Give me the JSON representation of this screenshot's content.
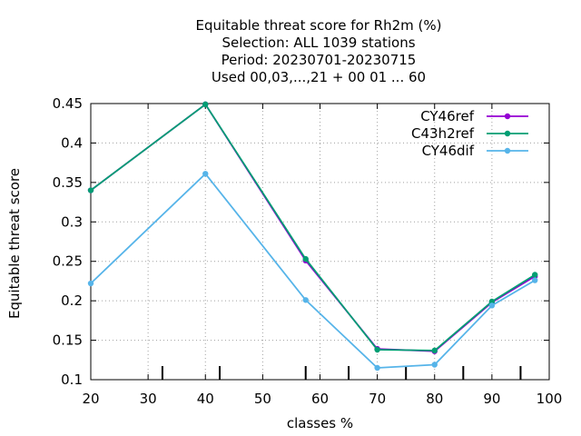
{
  "chart_data": {
    "type": "line",
    "title_lines": [
      "Equitable threat score  for Rh2m (%)",
      "Selection: ALL   1039 stations",
      "Period: 20230701-20230715",
      "Used  00,03,...,21  + 00 01 ... 60"
    ],
    "xlabel": "classes %",
    "ylabel": "Equitable threat score",
    "xlim": [
      20,
      100
    ],
    "ylim": [
      0.1,
      0.45
    ],
    "xticks": [
      20,
      30,
      40,
      50,
      60,
      70,
      80,
      90,
      100
    ],
    "yticks": [
      0.1,
      0.15,
      0.2,
      0.25,
      0.3,
      0.35,
      0.4,
      0.45
    ],
    "ytick_labels": [
      "0.1",
      "0.15",
      "0.2",
      "0.25",
      "0.3",
      "0.35",
      "0.4",
      "0.45"
    ],
    "minor_marks_x": [
      32.5,
      42.5,
      57.5,
      65,
      75,
      85,
      95
    ],
    "grid": true,
    "legend_position": "top-right",
    "x": [
      20,
      40,
      57.5,
      70,
      80,
      90,
      97.5
    ],
    "series": [
      {
        "name": "CY46ref",
        "color": "#9400d3",
        "values": [
          0.34,
          0.449,
          0.251,
          0.139,
          0.136,
          0.198,
          0.231
        ]
      },
      {
        "name": "C43h2ref",
        "color": "#009e73",
        "values": [
          0.34,
          0.449,
          0.253,
          0.138,
          0.137,
          0.199,
          0.233
        ]
      },
      {
        "name": "CY46dif",
        "color": "#56b4e9",
        "values": [
          0.222,
          0.361,
          0.201,
          0.115,
          0.119,
          0.194,
          0.226
        ]
      }
    ]
  }
}
